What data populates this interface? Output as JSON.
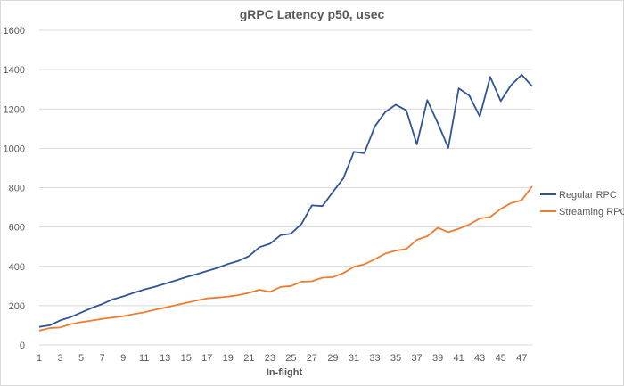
{
  "chart_data": {
    "type": "line",
    "title": "gRPC Latency p50, usec",
    "xlabel": "In-flight",
    "ylabel": "",
    "ylim": [
      0,
      1600
    ],
    "yticks": [
      0,
      200,
      400,
      600,
      800,
      1000,
      1200,
      1400,
      1600
    ],
    "xlim": [
      1,
      48
    ],
    "xtick_labels": [
      1,
      3,
      5,
      7,
      9,
      11,
      13,
      15,
      17,
      19,
      21,
      23,
      25,
      27,
      29,
      31,
      33,
      35,
      37,
      39,
      41,
      43,
      45,
      47
    ],
    "grid": "horizontal",
    "legend_position": "right",
    "x": [
      1,
      2,
      3,
      4,
      5,
      6,
      7,
      8,
      9,
      10,
      11,
      12,
      13,
      14,
      15,
      16,
      17,
      18,
      19,
      20,
      21,
      22,
      23,
      24,
      25,
      26,
      27,
      28,
      29,
      30,
      31,
      32,
      33,
      34,
      35,
      36,
      37,
      38,
      39,
      40,
      41,
      42,
      43,
      44,
      45,
      46,
      47,
      48
    ],
    "series": [
      {
        "name": "Regular RPC",
        "color": "#2f5597",
        "values": [
          92,
          100,
          125,
          142,
          165,
          188,
          208,
          232,
          247,
          265,
          282,
          296,
          312,
          328,
          345,
          360,
          376,
          392,
          412,
          428,
          452,
          497,
          515,
          558,
          566,
          615,
          710,
          706,
          778,
          848,
          982,
          975,
          1112,
          1185,
          1222,
          1193,
          1020,
          1245,
          1128,
          1002,
          1305,
          1268,
          1162,
          1363,
          1240,
          1322,
          1374,
          1315
        ]
      },
      {
        "name": "Streaming RPC",
        "color": "#ed7d31",
        "values": [
          73,
          86,
          89,
          106,
          116,
          124,
          133,
          140,
          146,
          157,
          166,
          179,
          190,
          202,
          214,
          226,
          237,
          241,
          246,
          254,
          265,
          281,
          270,
          295,
          300,
          322,
          324,
          342,
          345,
          366,
          397,
          410,
          436,
          465,
          480,
          488,
          535,
          553,
          596,
          574,
          591,
          613,
          643,
          651,
          692,
          722,
          736,
          807
        ]
      }
    ]
  }
}
